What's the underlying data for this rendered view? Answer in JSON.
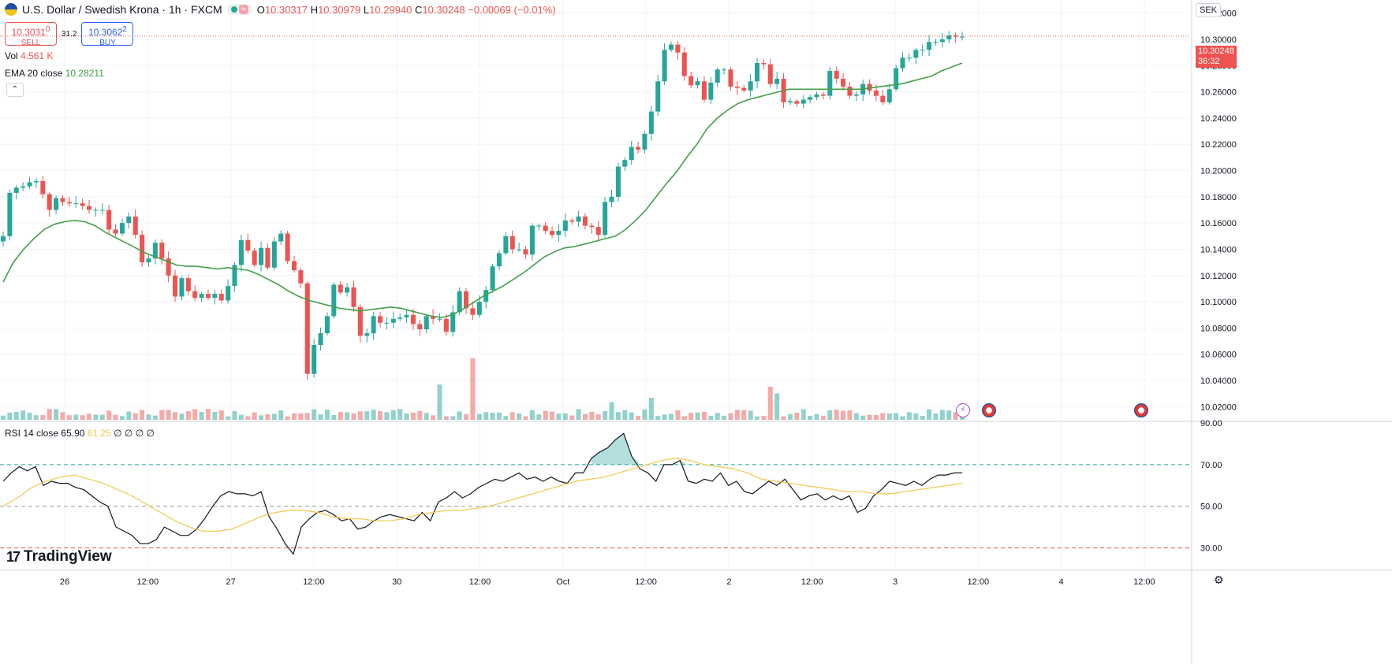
{
  "header": {
    "symbol": "U.S. Dollar / Swedish Krona · 1h · FXCM",
    "wave_icon": "≈",
    "ohlc": {
      "o_label": "O",
      "o": "10.30317",
      "h_label": "H",
      "h": "10.30979",
      "l_label": "L",
      "l": "10.29940",
      "c_label": "C",
      "c": "10.30248",
      "change": "−0.00069 (−0.01%)"
    }
  },
  "trade": {
    "sell_price": "10.3031",
    "sell_sup": "0",
    "sell_label": "SELL",
    "spread": "31.2",
    "buy_price": "10.3062",
    "buy_sup": "2",
    "buy_label": "BUY"
  },
  "indicators": {
    "vol_label": "Vol",
    "vol_value": "4.561 K",
    "ema_label": "EMA 20 close",
    "ema_value": "10.28211",
    "collapse_icon": "⌃",
    "rsi_label": "RSI 14 close",
    "rsi_value": "65.90",
    "rsi_ma_value": "61.25",
    "rsi_extra": "∅ ∅ ∅ ∅"
  },
  "axis": {
    "currency": "SEK",
    "price_tag": "10.30248",
    "countdown": "36:32",
    "price_ticks": [
      "10.32000",
      "10.30000",
      "10.28000",
      "10.26000",
      "10.24000",
      "10.22000",
      "10.20000",
      "10.18000",
      "10.16000",
      "10.14000",
      "10.12000",
      "10.10000",
      "10.08000",
      "10.06000",
      "10.04000",
      "10.02000"
    ],
    "rsi_ticks": [
      "90.00",
      "70.00",
      "50.00",
      "30.00"
    ],
    "time_ticks": [
      "26",
      "12:00",
      "27",
      "12:00",
      "30",
      "12:00",
      "Oct",
      "12:00",
      "2",
      "12:00",
      "3",
      "12:00",
      "4",
      "12:00"
    ]
  },
  "branding": {
    "logo_text": "TradingView",
    "logo_mark": "17"
  },
  "colors": {
    "up": "#26a69a",
    "down": "#ef5350",
    "ema": "#43a047",
    "rsi": "#131722",
    "rsi_ma": "#f2c94c",
    "grid": "#f0f3fa"
  },
  "chart_data": [
    {
      "type": "candlestick",
      "title": "U.S. Dollar / Swedish Krona · 1h · FXCM",
      "ylabel": "SEK",
      "ylim": [
        10.01,
        10.33
      ],
      "grid": true,
      "legend": "top-left",
      "x_ticks": [
        "26",
        "12:00",
        "27",
        "12:00",
        "30",
        "12:00",
        "Oct",
        "12:00",
        "2",
        "12:00",
        "3",
        "12:00",
        "4",
        "12:00"
      ],
      "closes": [
        10.15,
        10.183,
        10.187,
        10.188,
        10.191,
        10.192,
        10.182,
        10.17,
        10.179,
        10.176,
        10.175,
        10.175,
        10.173,
        10.17,
        10.17,
        10.17,
        10.155,
        10.152,
        10.16,
        10.165,
        10.151,
        10.13,
        10.133,
        10.145,
        10.133,
        10.12,
        10.104,
        10.118,
        10.108,
        10.103,
        10.106,
        10.103,
        10.106,
        10.101,
        10.112,
        10.128,
        10.147,
        10.139,
        10.128,
        10.141,
        10.126,
        10.146,
        10.152,
        10.131,
        10.124,
        10.114,
        10.045,
        10.067,
        10.076,
        10.089,
        10.113,
        10.107,
        10.111,
        10.096,
        10.074,
        10.076,
        10.089,
        10.084,
        10.084,
        10.087,
        10.088,
        10.09,
        10.083,
        10.079,
        10.089,
        10.087,
        10.087,
        10.077,
        10.092,
        10.108,
        10.095,
        10.09,
        10.1,
        10.109,
        10.127,
        10.137,
        10.15,
        10.14,
        10.14,
        10.136,
        10.158,
        10.158,
        10.154,
        10.151,
        10.154,
        10.162,
        10.161,
        10.165,
        10.158,
        10.157,
        10.151,
        10.176,
        10.18,
        10.203,
        10.208,
        10.218,
        10.216,
        10.228,
        10.245,
        10.268,
        10.292,
        10.296,
        10.29,
        10.272,
        10.265,
        10.268,
        10.254,
        10.267,
        10.277,
        10.277,
        10.264,
        10.263,
        10.261,
        10.268,
        10.282,
        10.281,
        10.266,
        10.27,
        10.252,
        10.253,
        10.251,
        10.254,
        10.256,
        10.258,
        10.257,
        10.276,
        10.27,
        10.264,
        10.257,
        10.258,
        10.266,
        10.261,
        10.257,
        10.252,
        10.262,
        10.278,
        10.286,
        10.286,
        10.292,
        10.292,
        10.298,
        10.298,
        10.3,
        10.303,
        10.302,
        10.302
      ],
      "ema20": [
        10.115,
        10.13,
        10.14,
        10.148,
        10.155,
        10.159,
        10.161,
        10.162,
        10.161,
        10.158,
        10.153,
        10.149,
        10.145,
        10.141,
        10.137,
        10.134,
        10.131,
        10.128,
        10.127,
        10.127,
        10.126,
        10.125,
        10.126,
        10.125,
        10.124,
        10.121,
        10.117,
        10.113,
        10.108,
        10.104,
        10.101,
        10.099,
        10.097,
        10.095,
        10.094,
        10.093,
        10.094,
        10.095,
        10.096,
        10.095,
        10.093,
        10.091,
        10.089,
        10.088,
        10.09,
        10.094,
        10.099,
        10.104,
        10.108,
        10.112,
        10.117,
        10.122,
        10.128,
        10.134,
        10.138,
        10.141,
        10.142,
        10.144,
        10.146,
        10.148,
        10.15,
        10.155,
        10.162,
        10.17,
        10.18,
        10.19,
        10.199,
        10.21,
        10.22,
        10.232,
        10.24,
        10.246,
        10.251,
        10.254,
        10.256,
        10.258,
        10.26,
        10.262,
        10.262,
        10.262,
        10.262,
        10.262,
        10.262,
        10.262,
        10.262,
        10.263,
        10.264,
        10.265,
        10.266,
        10.268,
        10.27,
        10.272,
        10.276,
        10.279,
        10.282
      ],
      "volume_max_label": "4.561 K"
    },
    {
      "type": "line",
      "title": "RSI 14 close",
      "ylim": [
        20,
        90
      ],
      "levels": [
        70,
        50,
        30
      ],
      "series": [
        {
          "name": "RSI 14 close",
          "values": [
            62,
            66,
            69,
            67,
            69,
            60,
            62,
            61,
            61,
            59,
            58,
            55,
            52,
            50,
            40,
            38,
            36,
            32,
            32,
            34,
            40,
            38,
            36,
            36,
            39,
            44,
            50,
            55,
            57,
            56,
            56,
            55,
            57,
            45,
            39,
            32,
            27,
            40,
            44,
            47,
            48,
            46,
            43,
            44,
            39,
            40,
            43,
            45,
            46,
            45,
            44,
            43,
            47,
            43,
            52,
            54,
            57,
            54,
            56,
            59,
            61,
            63,
            62,
            64,
            66,
            63,
            64,
            62,
            64,
            62,
            61,
            66,
            66,
            73,
            76,
            78,
            82,
            85,
            74,
            68,
            66,
            62,
            70,
            70,
            72,
            62,
            61,
            63,
            62,
            66,
            60,
            62,
            57,
            56,
            59,
            62,
            60,
            63,
            58,
            53,
            55,
            56,
            53,
            55,
            53,
            55,
            47,
            49,
            55,
            58,
            62,
            61,
            60,
            62,
            60,
            63,
            65,
            65,
            66,
            66
          ]
        },
        {
          "name": "RSI MA",
          "values": [
            50,
            54,
            59,
            62,
            64,
            65,
            63,
            61,
            58,
            55,
            51,
            47,
            43,
            40,
            38,
            38,
            39,
            42,
            45,
            47,
            48,
            48,
            47,
            45,
            44,
            44,
            43,
            43,
            44,
            46,
            47,
            48,
            48,
            49,
            50,
            52,
            54,
            56,
            58,
            60,
            62,
            63,
            64,
            66,
            68,
            70,
            72,
            73,
            72,
            70,
            69,
            68,
            66,
            63,
            62,
            61,
            60,
            59,
            58,
            57,
            57,
            56,
            56,
            57,
            58,
            59,
            60,
            61
          ]
        }
      ]
    }
  ]
}
